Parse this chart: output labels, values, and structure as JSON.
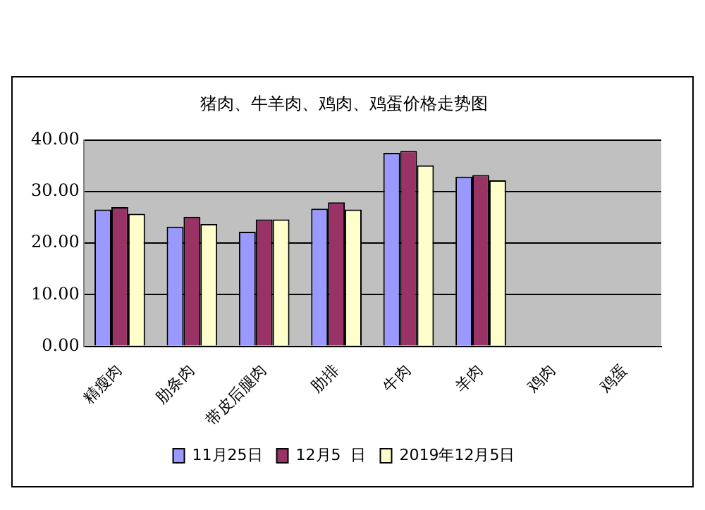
{
  "chart_data": {
    "type": "bar",
    "title": "猪肉、牛羊肉、鸡肉、鸡蛋价格走势图",
    "categories": [
      "精瘦肉",
      "肋条肉",
      "带皮后腿肉",
      "肋排",
      "牛肉",
      "羊肉",
      "鸡肉",
      "鸡蛋"
    ],
    "series": [
      {
        "name": "11月25日",
        "color": "#9999ff",
        "values": [
          26.5,
          23.2,
          22.2,
          26.7,
          37.5,
          32.9,
          null,
          null
        ]
      },
      {
        "name": "12月5  日",
        "color": "#993366",
        "values": [
          27.0,
          25.1,
          24.6,
          27.9,
          37.9,
          33.2,
          null,
          null
        ]
      },
      {
        "name": "2019年12月5日",
        "color": "#ffffcc",
        "values": [
          25.7,
          23.7,
          24.6,
          26.5,
          35.1,
          32.2,
          null,
          null
        ]
      }
    ],
    "ylim": [
      0,
      40
    ],
    "yticks": [
      {
        "value": 0,
        "label": "0.00"
      },
      {
        "value": 10,
        "label": "10.00"
      },
      {
        "value": 20,
        "label": "20.00"
      },
      {
        "value": 30,
        "label": "30.00"
      },
      {
        "value": 40,
        "label": "40.00"
      }
    ],
    "grid": "y",
    "legend": "bottom"
  }
}
